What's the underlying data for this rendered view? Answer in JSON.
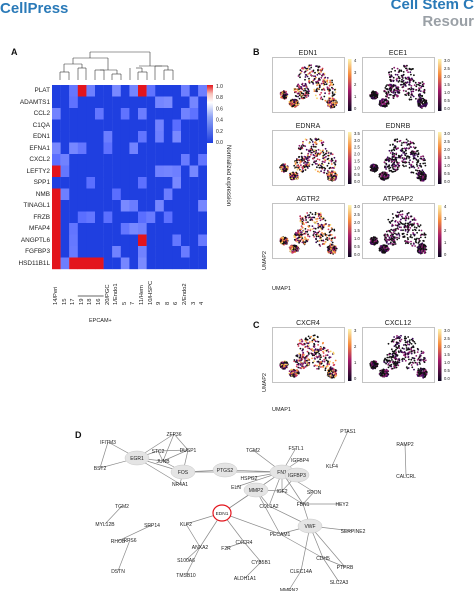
{
  "header": {
    "left_logo": "CellPress",
    "right_logo": "Cell Stem C",
    "right_sub": "Resour"
  },
  "panels": {
    "a": "A",
    "b": "B",
    "c": "C",
    "d": "D"
  },
  "heatmap": {
    "genes": [
      "PLAT",
      "ADAMTS1",
      "CCL2",
      "C1QA",
      "EDN1",
      "EFNA1",
      "CXCL2",
      "LEFTY2",
      "SPP1",
      "NMB",
      "TINAGL1",
      "FRZB",
      "MFAP4",
      "ANGPTL6",
      "FGFBP3",
      "HSD11B1L"
    ],
    "clusters": [
      "14/Peri",
      "15",
      "17",
      "19",
      "18",
      "16",
      "20/PGC",
      "1/Endo1",
      "5",
      "7",
      "11/Hem",
      "10/HSPC",
      "9",
      "8",
      "6",
      "2/Endo2",
      "3",
      "4"
    ],
    "epcam_label": "EPCAM+",
    "colorbar_label": "Normalized expression",
    "colorbar_ticks": [
      "1.0",
      "0.8",
      "0.6",
      "0.4",
      "0.2",
      "0.0"
    ],
    "colors": {
      "low": "#1f3fe0",
      "high": "#e0101a",
      "mid": "#ffffff"
    }
  },
  "umap_b": [
    {
      "gene": "EDN1",
      "ticks": [
        "4",
        "3",
        "2",
        "1",
        "0"
      ]
    },
    {
      "gene": "ECE1",
      "ticks": [
        "3.0",
        "2.5",
        "2.0",
        "1.5",
        "1.0",
        "0.5",
        "0.0"
      ]
    },
    {
      "gene": "EDNRA",
      "ticks": [
        "3.5",
        "3.0",
        "2.5",
        "2.0",
        "1.5",
        "1.0",
        "0.5",
        "0.0"
      ]
    },
    {
      "gene": "EDNRB",
      "ticks": [
        "3.0",
        "2.5",
        "2.0",
        "1.5",
        "1.0",
        "0.5",
        "0.0"
      ]
    },
    {
      "gene": "AGTR2",
      "ticks": [
        "3.0",
        "2.5",
        "2.0",
        "1.5",
        "1.0",
        "0.5",
        "0.0"
      ]
    },
    {
      "gene": "ATP6AP2",
      "ticks": [
        "4",
        "3",
        "2",
        "1",
        "0"
      ]
    }
  ],
  "umap_c": [
    {
      "gene": "CXCR4",
      "ticks": [
        "3",
        "2",
        "1",
        "0"
      ]
    },
    {
      "gene": "CXCL12",
      "ticks": [
        "3.0",
        "2.5",
        "2.0",
        "1.5",
        "1.0",
        "0.5",
        "0.0"
      ]
    }
  ],
  "umap_axes": {
    "x": "UMAP1",
    "y": "UMAP2"
  },
  "network": {
    "nodes": [
      {
        "id": "IFITM3",
        "label": "IFITM3"
      },
      {
        "id": "ZFP36",
        "label": "ZFP36"
      },
      {
        "id": "BST2",
        "label": "BST2"
      },
      {
        "id": "EGR1",
        "label": "EGR1"
      },
      {
        "id": "STC2",
        "label": "STC2"
      },
      {
        "id": "JUNB",
        "label": "JUNB"
      },
      {
        "id": "DUSP1",
        "label": "DUSP1"
      },
      {
        "id": "NR4A1",
        "label": "NR4A1"
      },
      {
        "id": "FOS",
        "label": "FOS"
      },
      {
        "id": "TGM2_top",
        "label": "TGM2"
      },
      {
        "id": "FSTL1",
        "label": "FSTL1"
      },
      {
        "id": "IGFBP4",
        "label": "IGFBP4"
      },
      {
        "id": "PTGS2",
        "label": "PTGS2"
      },
      {
        "id": "FN1",
        "label": "FN1"
      },
      {
        "id": "HSPG2",
        "label": "HSPG2"
      },
      {
        "id": "IGFBP3",
        "label": "IGFBP3"
      },
      {
        "id": "ELN",
        "label": "ELN"
      },
      {
        "id": "MMP2",
        "label": "MMP2"
      },
      {
        "id": "IGF2",
        "label": "IGF2"
      },
      {
        "id": "SPON",
        "label": "SPON"
      },
      {
        "id": "FBN1",
        "label": "FBN1"
      },
      {
        "id": "HEY2",
        "label": "HEY2"
      },
      {
        "id": "COL1A2",
        "label": "COL1A2"
      },
      {
        "id": "EDN1",
        "label": "EDN1"
      },
      {
        "id": "PECAM1",
        "label": "PECAM1"
      },
      {
        "id": "VWF",
        "label": "VWF"
      },
      {
        "id": "KLF4",
        "label": "KLF4"
      },
      {
        "id": "PTAS1",
        "label": "PTAS1"
      },
      {
        "id": "RAMP2",
        "label": "RAMP2"
      },
      {
        "id": "CALCRL",
        "label": "CALCRL"
      },
      {
        "id": "SERPINE2",
        "label": "SERPINE2"
      },
      {
        "id": "TGM2_left",
        "label": "TGM2"
      },
      {
        "id": "MYL12B",
        "label": "MYL12B"
      },
      {
        "id": "SRP14",
        "label": "SRP14"
      },
      {
        "id": "RHOB",
        "label": "RHOB"
      },
      {
        "id": "RPS6",
        "label": "RPS6"
      },
      {
        "id": "DSTN",
        "label": "DSTN"
      },
      {
        "id": "KLF2",
        "label": "KLF2"
      },
      {
        "id": "CXCR4",
        "label": "CXCR4"
      },
      {
        "id": "ANXA2",
        "label": "ANXA2"
      },
      {
        "id": "F2R",
        "label": "F2R"
      },
      {
        "id": "CYB5B1",
        "label": "CYB5B1"
      },
      {
        "id": "CDH5",
        "label": "CDH5"
      },
      {
        "id": "S100A6",
        "label": "S100A6"
      },
      {
        "id": "TMSB10",
        "label": "TMSB10"
      },
      {
        "id": "CLEC14A",
        "label": "CLEC14A"
      },
      {
        "id": "PTPRB",
        "label": "PTPRB"
      },
      {
        "id": "SLC2A3",
        "label": "SLC2A3"
      },
      {
        "id": "ALDH1A1",
        "label": "ALDH1A1"
      },
      {
        "id": "MMRN2",
        "label": "MMRN2"
      }
    ],
    "edges": [
      [
        "IFITM3",
        "BST2"
      ],
      [
        "IFITM3",
        "EGR1"
      ],
      [
        "ZFP36",
        "EGR1"
      ],
      [
        "ZFP36",
        "DUSP1"
      ],
      [
        "ZFP36",
        "JUNB"
      ],
      [
        "EGR1",
        "STC2"
      ],
      [
        "EGR1",
        "JUNB"
      ],
      [
        "EGR1",
        "FOS"
      ],
      [
        "EGR1",
        "BST2"
      ],
      [
        "EGR1",
        "NR4A1"
      ],
      [
        "STC2",
        "JUNB"
      ],
      [
        "STC2",
        "DUSP1"
      ],
      [
        "JUNB",
        "FOS"
      ],
      [
        "DUSP1",
        "FOS"
      ],
      [
        "DUSP1",
        "JUNB"
      ],
      [
        "FOS",
        "NR4A1"
      ],
      [
        "FOS",
        "PTGS2"
      ],
      [
        "FOS",
        "FN1"
      ],
      [
        "TGM2_top",
        "FN1"
      ],
      [
        "FSTL1",
        "FN1"
      ],
      [
        "IGFBP4",
        "FN1"
      ],
      [
        "HSPG2",
        "FN1"
      ],
      [
        "PTGS2",
        "FN1"
      ],
      [
        "FN1",
        "IGFBP3"
      ],
      [
        "FN1",
        "MMP2"
      ],
      [
        "FN1",
        "ELN"
      ],
      [
        "FN1",
        "IGF2"
      ],
      [
        "FN1",
        "SPON"
      ],
      [
        "FN1",
        "FBN1"
      ],
      [
        "FN1",
        "COL1A2"
      ],
      [
        "MMP2",
        "IGF2"
      ],
      [
        "MMP2",
        "COL1A2"
      ],
      [
        "MMP2",
        "EDN1"
      ],
      [
        "MMP2",
        "PECAM1"
      ],
      [
        "IGF2",
        "FBN1"
      ],
      [
        "IGFBP3",
        "IGF2"
      ],
      [
        "SPON",
        "FBN1"
      ],
      [
        "FBN1",
        "HEY2"
      ],
      [
        "FBN1",
        "VWF"
      ],
      [
        "COL1A2",
        "VWF"
      ],
      [
        "EDN1",
        "FN1"
      ],
      [
        "EDN1",
        "KLF2"
      ],
      [
        "EDN1",
        "CXCR4"
      ],
      [
        "EDN1",
        "PECAM1"
      ],
      [
        "EDN1",
        "ANXA2"
      ],
      [
        "PECAM1",
        "VWF"
      ],
      [
        "PECAM1",
        "CDH5"
      ],
      [
        "VWF",
        "SERPINE2"
      ],
      [
        "VWF",
        "CDH5"
      ],
      [
        "VWF",
        "PTPRB"
      ],
      [
        "VWF",
        "CLEC14A"
      ],
      [
        "CDH5",
        "PTPRB"
      ],
      [
        "CDH5",
        "SLC2A3"
      ],
      [
        "KLF4",
        "PTAS1"
      ],
      [
        "RAMP2",
        "CALCRL"
      ],
      [
        "TGM2_left",
        "MYL12B"
      ],
      [
        "SRP14",
        "RHOB"
      ],
      [
        "RPS6",
        "DSTN"
      ],
      [
        "CXCR4",
        "F2R"
      ],
      [
        "CXCR4",
        "CYB5B1"
      ],
      [
        "ANXA2",
        "S100A6"
      ],
      [
        "ANXA2",
        "TMSB10"
      ],
      [
        "CYB5B1",
        "ALDH1A1"
      ],
      [
        "CLEC14A",
        "MMRN2"
      ],
      [
        "KLF2",
        "ANXA2"
      ]
    ]
  }
}
